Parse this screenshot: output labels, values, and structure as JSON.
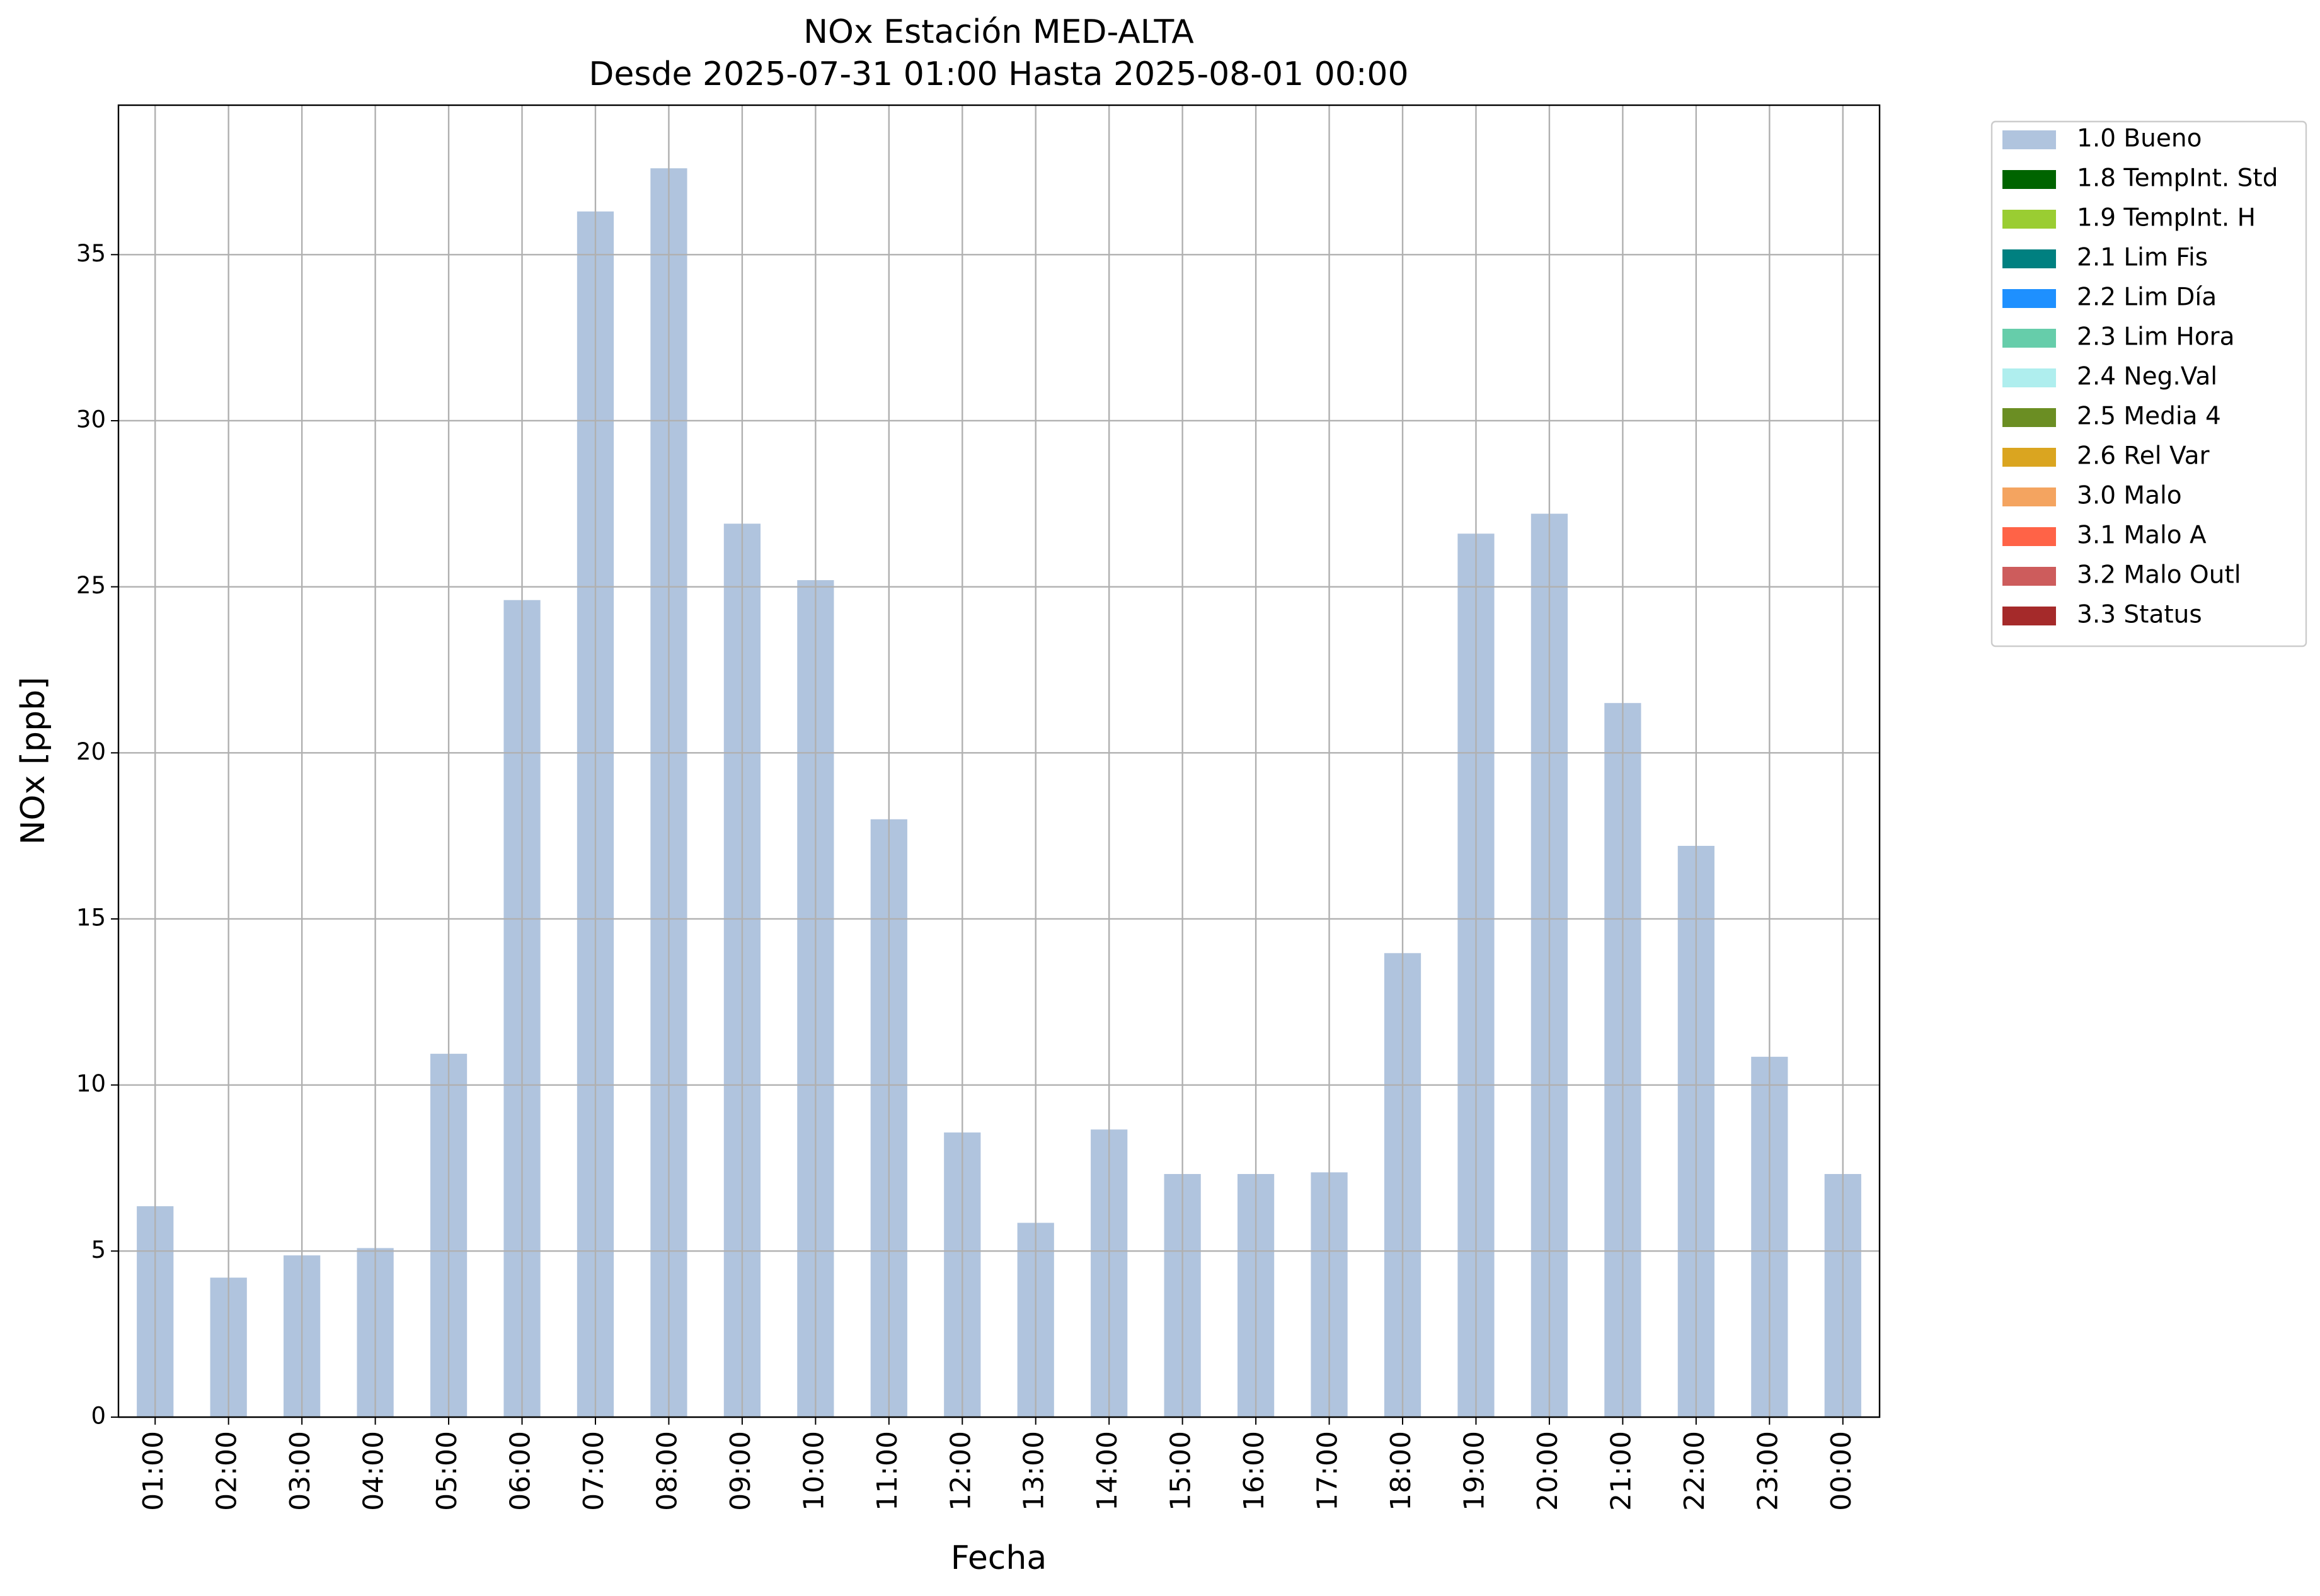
{
  "chart_data": {
    "type": "bar",
    "stacked": true,
    "title": [
      "NOx Estación MED-ALTA",
      "Desde 2025-07-31 01:00 Hasta 2025-08-01 00:00"
    ],
    "x_label": "Fecha",
    "y_label": "NOx [ppb]",
    "categories": [
      "01:00",
      "02:00",
      "03:00",
      "04:00",
      "05:00",
      "06:00",
      "07:00",
      "08:00",
      "09:00",
      "10:00",
      "11:00",
      "12:00",
      "13:00",
      "14:00",
      "15:00",
      "16:00",
      "17:00",
      "18:00",
      "19:00",
      "20:00",
      "21:00",
      "22:00",
      "23:00",
      "00:00"
    ],
    "series": [
      {
        "name": "1.0 Bueno",
        "color": "#b0c4de",
        "values": [
          6.35,
          4.2,
          4.87,
          5.09,
          10.94,
          24.6,
          36.3,
          37.6,
          26.9,
          25.2,
          18.0,
          8.57,
          5.85,
          8.66,
          7.32,
          7.32,
          7.37,
          13.97,
          26.6,
          27.2,
          21.5,
          17.2,
          10.85,
          7.32
        ]
      },
      {
        "name": "1.8 TempInt. Std",
        "color": "#006400",
        "values": [
          0,
          0,
          0,
          0,
          0,
          0,
          0,
          0,
          0,
          0,
          0,
          0,
          0,
          0,
          0,
          0,
          0,
          0,
          0,
          0,
          0,
          0,
          0,
          0
        ]
      },
      {
        "name": "1.9 TempInt. H",
        "color": "#9acd32",
        "values": [
          0,
          0,
          0,
          0,
          0,
          0,
          0,
          0,
          0,
          0,
          0,
          0,
          0,
          0,
          0,
          0,
          0,
          0,
          0,
          0,
          0,
          0,
          0,
          0
        ]
      },
      {
        "name": "2.1 Lim Fis",
        "color": "#008080",
        "values": [
          0,
          0,
          0,
          0,
          0,
          0,
          0,
          0,
          0,
          0,
          0,
          0,
          0,
          0,
          0,
          0,
          0,
          0,
          0,
          0,
          0,
          0,
          0,
          0
        ]
      },
      {
        "name": "2.2 Lim Día",
        "color": "#1e90ff",
        "values": [
          0,
          0,
          0,
          0,
          0,
          0,
          0,
          0,
          0,
          0,
          0,
          0,
          0,
          0,
          0,
          0,
          0,
          0,
          0,
          0,
          0,
          0,
          0,
          0
        ]
      },
      {
        "name": "2.3 Lim Hora",
        "color": "#66cdaa",
        "values": [
          0,
          0,
          0,
          0,
          0,
          0,
          0,
          0,
          0,
          0,
          0,
          0,
          0,
          0,
          0,
          0,
          0,
          0,
          0,
          0,
          0,
          0,
          0,
          0
        ]
      },
      {
        "name": "2.4 Neg.Val",
        "color": "#afeeee",
        "values": [
          0,
          0,
          0,
          0,
          0,
          0,
          0,
          0,
          0,
          0,
          0,
          0,
          0,
          0,
          0,
          0,
          0,
          0,
          0,
          0,
          0,
          0,
          0,
          0
        ]
      },
      {
        "name": "2.5 Media 4",
        "color": "#6b8e23",
        "values": [
          0,
          0,
          0,
          0,
          0,
          0,
          0,
          0,
          0,
          0,
          0,
          0,
          0,
          0,
          0,
          0,
          0,
          0,
          0,
          0,
          0,
          0,
          0,
          0
        ]
      },
      {
        "name": "2.6 Rel Var",
        "color": "#daa520",
        "values": [
          0,
          0,
          0,
          0,
          0,
          0,
          0,
          0,
          0,
          0,
          0,
          0,
          0,
          0,
          0,
          0,
          0,
          0,
          0,
          0,
          0,
          0,
          0,
          0
        ]
      },
      {
        "name": "3.0 Malo",
        "color": "#f4a460",
        "values": [
          0,
          0,
          0,
          0,
          0,
          0,
          0,
          0,
          0,
          0,
          0,
          0,
          0,
          0,
          0,
          0,
          0,
          0,
          0,
          0,
          0,
          0,
          0,
          0
        ]
      },
      {
        "name": "3.1 Malo A",
        "color": "#ff6347",
        "values": [
          0,
          0,
          0,
          0,
          0,
          0,
          0,
          0,
          0,
          0,
          0,
          0,
          0,
          0,
          0,
          0,
          0,
          0,
          0,
          0,
          0,
          0,
          0,
          0
        ]
      },
      {
        "name": "3.2 Malo Outl",
        "color": "#cd5c5c",
        "values": [
          0,
          0,
          0,
          0,
          0,
          0,
          0,
          0,
          0,
          0,
          0,
          0,
          0,
          0,
          0,
          0,
          0,
          0,
          0,
          0,
          0,
          0,
          0,
          0
        ]
      },
      {
        "name": "3.3 Status",
        "color": "#a52a2a",
        "values": [
          0,
          0,
          0,
          0,
          0,
          0,
          0,
          0,
          0,
          0,
          0,
          0,
          0,
          0,
          0,
          0,
          0,
          0,
          0,
          0,
          0,
          0,
          0,
          0
        ]
      }
    ],
    "ylim": [
      0,
      39.5
    ],
    "yticks": [
      0,
      5,
      10,
      15,
      20,
      25,
      30,
      35
    ],
    "grid": true,
    "legend": "outside right"
  }
}
